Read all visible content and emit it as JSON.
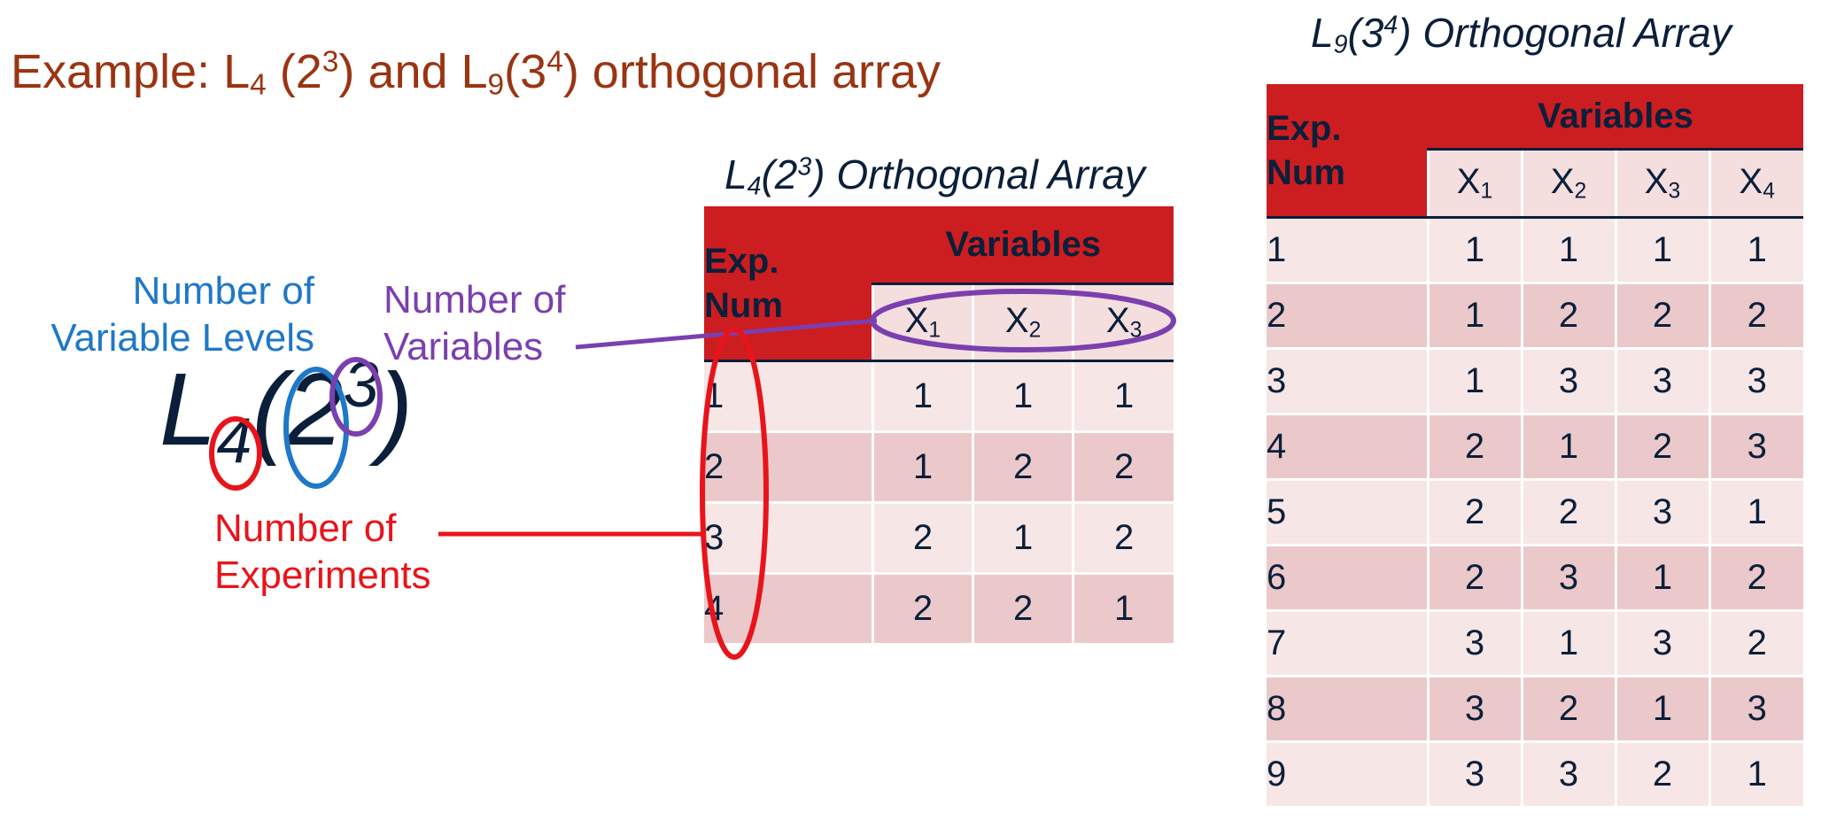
{
  "title": {
    "prefix": "Example: L",
    "sub1": "4",
    "mid1": " (2",
    "sup1": "3",
    "mid2": ") and L",
    "sub2": "9",
    "mid3": "(3",
    "sup2": "4",
    "suffix": ") orthogonal array"
  },
  "l4": {
    "caption": {
      "L": "L",
      "sub": "4",
      "open": "(2",
      "sup": "3",
      "close": ") Orthogonal Array"
    },
    "header": {
      "exp_line1": "Exp.",
      "exp_line2": "Num",
      "variables": "Variables"
    },
    "columns": [
      {
        "x": "X",
        "sub": "1"
      },
      {
        "x": "X",
        "sub": "2"
      },
      {
        "x": "X",
        "sub": "3"
      }
    ],
    "rows": [
      {
        "num": "1",
        "vals": [
          "1",
          "1",
          "1"
        ]
      },
      {
        "num": "2",
        "vals": [
          "1",
          "2",
          "2"
        ]
      },
      {
        "num": "3",
        "vals": [
          "2",
          "1",
          "2"
        ]
      },
      {
        "num": "4",
        "vals": [
          "2",
          "2",
          "1"
        ]
      }
    ]
  },
  "l9": {
    "caption": {
      "L": "L",
      "sub": "9",
      "open": "(3",
      "sup": "4",
      "close": ") Orthogonal Array"
    },
    "header": {
      "exp_line1": "Exp.",
      "exp_line2": "Num",
      "variables": "Variables"
    },
    "columns": [
      {
        "x": "X",
        "sub": "1"
      },
      {
        "x": "X",
        "sub": "2"
      },
      {
        "x": "X",
        "sub": "3"
      },
      {
        "x": "X",
        "sub": "4"
      }
    ],
    "rows": [
      {
        "num": "1",
        "vals": [
          "1",
          "1",
          "1",
          "1"
        ]
      },
      {
        "num": "2",
        "vals": [
          "1",
          "2",
          "2",
          "2"
        ]
      },
      {
        "num": "3",
        "vals": [
          "1",
          "3",
          "3",
          "3"
        ]
      },
      {
        "num": "4",
        "vals": [
          "2",
          "1",
          "2",
          "3"
        ]
      },
      {
        "num": "5",
        "vals": [
          "2",
          "2",
          "3",
          "1"
        ]
      },
      {
        "num": "6",
        "vals": [
          "2",
          "3",
          "1",
          "2"
        ]
      },
      {
        "num": "7",
        "vals": [
          "3",
          "1",
          "3",
          "2"
        ]
      },
      {
        "num": "8",
        "vals": [
          "3",
          "2",
          "1",
          "3"
        ]
      },
      {
        "num": "9",
        "vals": [
          "3",
          "3",
          "2",
          "1"
        ]
      }
    ]
  },
  "notation": {
    "L": "L",
    "sub": "4",
    "open": "(2",
    "sup": "3",
    "close": ")"
  },
  "annotations": {
    "levels": {
      "line1": "Number of",
      "line2": "Variable Levels"
    },
    "variables": {
      "line1": "Number of",
      "line2": "Variables"
    },
    "experiments": {
      "line1": "Number of",
      "line2": "Experiments"
    }
  },
  "colors": {
    "title": "#9a3412",
    "header_red": "#cc1d21",
    "row_light": "#f7e6e6",
    "row_dark": "#ebc9ca",
    "levels": "#1f78c8",
    "variables": "#7b3fae",
    "experiments": "#e8141b",
    "text_dark": "#0b1f3a"
  }
}
